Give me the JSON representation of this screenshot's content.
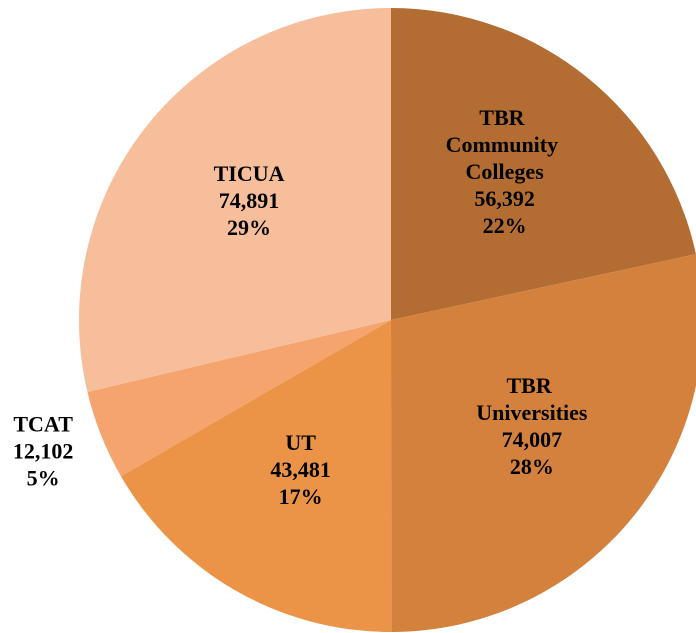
{
  "chart_data": {
    "type": "pie",
    "categories": [
      "TBR Community Colleges",
      "TBR Universities",
      "UT",
      "TCAT",
      "TICUA"
    ],
    "values": [
      56392,
      74007,
      43481,
      12102,
      74891
    ],
    "value_labels": [
      "56,392",
      "74,007",
      "43,481",
      "12,102",
      "74,891"
    ],
    "percent_labels": [
      "22%",
      "28%",
      "17%",
      "5%",
      "29%"
    ],
    "colors": [
      "#b36d33",
      "#d4813d",
      "#eb9447",
      "#f4a46c",
      "#f7be9c"
    ]
  }
}
